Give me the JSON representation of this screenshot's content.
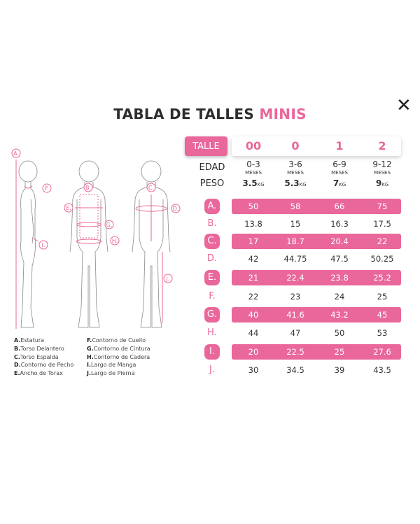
{
  "title": {
    "main": "TABLA DE TALLES",
    "accent": "MINIS"
  },
  "close_icon": "close-icon",
  "accent_color": "#e9679a",
  "header": {
    "talle_label": "TALLE",
    "sizes": [
      "00",
      "0",
      "1",
      "2"
    ]
  },
  "edad": {
    "label": "EDAD",
    "values": [
      "0-3",
      "3-6",
      "6-9",
      "9-12"
    ],
    "unit": "MESES"
  },
  "peso": {
    "label": "PESO",
    "values": [
      "3.5",
      "5.3",
      "7",
      "9"
    ],
    "unit": "KG"
  },
  "rows": [
    {
      "letter": "A.",
      "values": [
        "50",
        "58",
        "66",
        "75"
      ],
      "highlight": true
    },
    {
      "letter": "B.",
      "values": [
        "13.8",
        "15",
        "16.3",
        "17.5"
      ],
      "highlight": false
    },
    {
      "letter": "C.",
      "values": [
        "17",
        "18.7",
        "20.4",
        "22"
      ],
      "highlight": true
    },
    {
      "letter": "D.",
      "values": [
        "42",
        "44.75",
        "47.5",
        "50.25"
      ],
      "highlight": false
    },
    {
      "letter": "E.",
      "values": [
        "21",
        "22.4",
        "23.8",
        "25.2"
      ],
      "highlight": true
    },
    {
      "letter": "F.",
      "values": [
        "22",
        "23",
        "24",
        "25"
      ],
      "highlight": false
    },
    {
      "letter": "G.",
      "values": [
        "40",
        "41.6",
        "43.2",
        "45"
      ],
      "highlight": true
    },
    {
      "letter": "H.",
      "values": [
        "44",
        "47",
        "50",
        "53"
      ],
      "highlight": false
    },
    {
      "letter": "I.",
      "values": [
        "20",
        "22.5",
        "25",
        "27.6"
      ],
      "highlight": true
    },
    {
      "letter": "J.",
      "values": [
        "30",
        "34.5",
        "39",
        "43.5"
      ],
      "highlight": false
    }
  ],
  "legend": {
    "left": [
      {
        "k": "A.",
        "t": "Estatura"
      },
      {
        "k": "B.",
        "t": "Torso Delantero"
      },
      {
        "k": "C.",
        "t": "Torso Espalda"
      },
      {
        "k": "D.",
        "t": "Contorno de Pecho"
      },
      {
        "k": "E.",
        "t": "Ancho de Torax"
      }
    ],
    "right": [
      {
        "k": "F.",
        "t": "Contorno de Cuello"
      },
      {
        "k": "G.",
        "t": "Contorno de Cintura"
      },
      {
        "k": "H.",
        "t": "Contorno de Cadera"
      },
      {
        "k": "I.",
        "t": "Largo de Manga"
      },
      {
        "k": "J.",
        "t": "Largo de Pierna"
      }
    ]
  },
  "figure_labels": [
    "A.",
    "F.",
    "I.",
    "B.",
    "E.",
    "G.",
    "H.",
    "C.",
    "D.",
    "J."
  ]
}
